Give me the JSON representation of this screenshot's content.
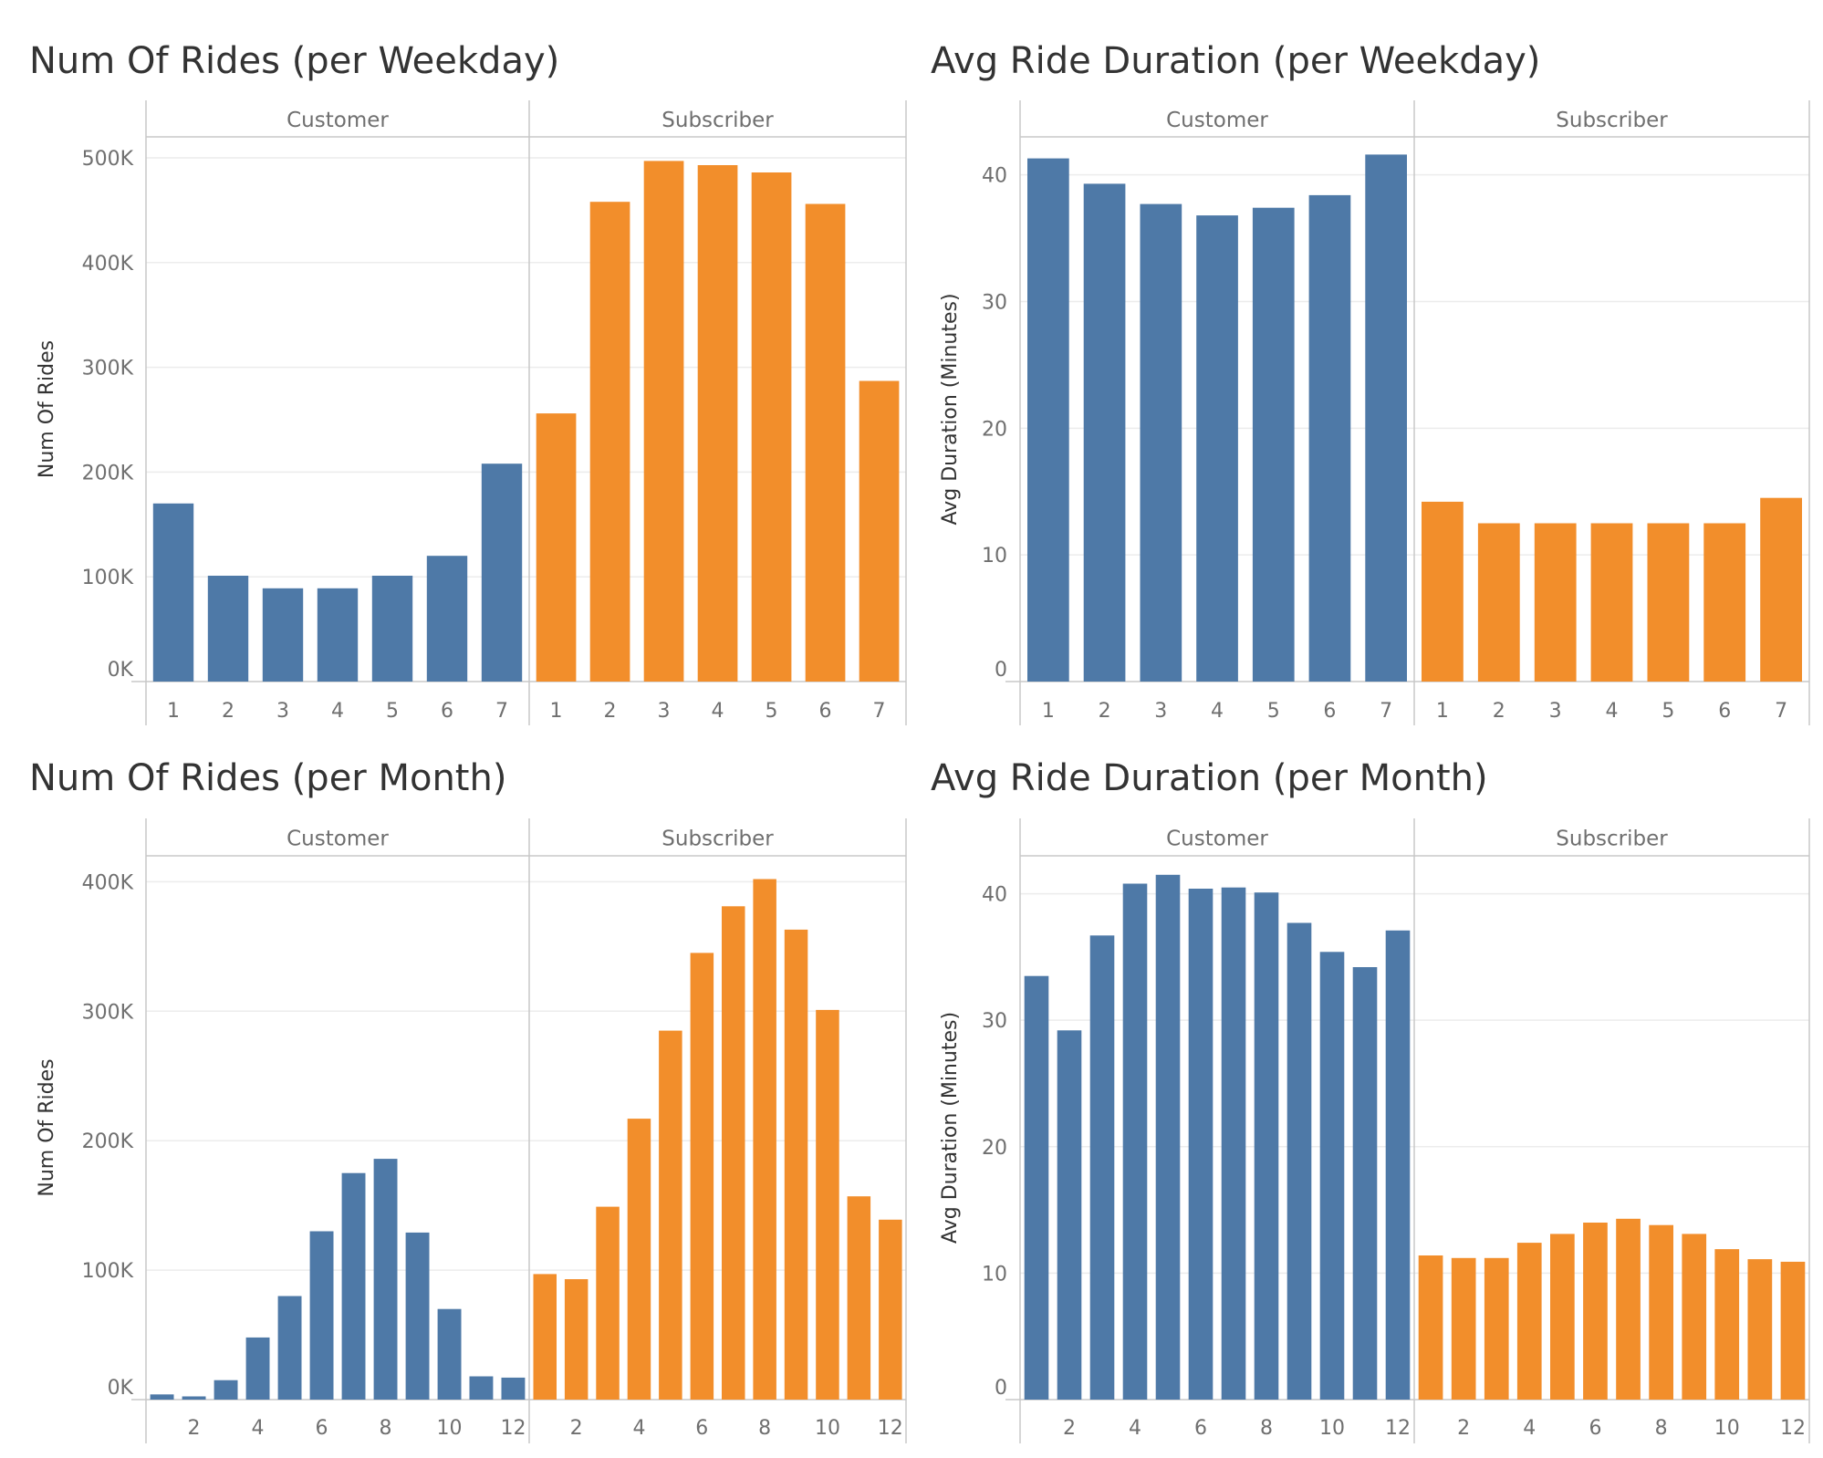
{
  "colors": {
    "customer": "#4e79a7",
    "subscriber": "#f28e2b",
    "grid": "#ececec",
    "axis": "#c8c8c8",
    "title": "#333333",
    "label": "#6f6f6f"
  },
  "chart_data": [
    {
      "id": "rides-weekday",
      "type": "bar",
      "title": "Num Of Rides (per Weekday)",
      "ylabel": "Num Of Rides",
      "ylim": [
        0,
        520000
      ],
      "ytick_values": [
        0,
        100000,
        200000,
        300000,
        400000,
        500000
      ],
      "ytick_labels": [
        "0K",
        "100K",
        "200K",
        "300K",
        "400K",
        "500K"
      ],
      "xtick_labels": [
        "1",
        "2",
        "3",
        "4",
        "5",
        "6",
        "7"
      ],
      "grid": true,
      "panels": [
        {
          "name": "Customer",
          "color_key": "customer",
          "categories": [
            1,
            2,
            3,
            4,
            5,
            6,
            7
          ],
          "values": [
            170000,
            101000,
            89000,
            89000,
            101000,
            120000,
            208000
          ]
        },
        {
          "name": "Subscriber",
          "color_key": "subscriber",
          "categories": [
            1,
            2,
            3,
            4,
            5,
            6,
            7
          ],
          "values": [
            256000,
            458000,
            497000,
            493000,
            486000,
            456000,
            287000
          ]
        }
      ]
    },
    {
      "id": "duration-weekday",
      "type": "bar",
      "title": "Avg Ride Duration (per Weekday)",
      "ylabel": "Avg Duration (Minutes)",
      "ylim": [
        0,
        43
      ],
      "ytick_values": [
        0,
        10,
        20,
        30,
        40
      ],
      "ytick_labels": [
        "0",
        "10",
        "20",
        "30",
        "40"
      ],
      "xtick_labels": [
        "1",
        "2",
        "3",
        "4",
        "5",
        "6",
        "7"
      ],
      "grid": true,
      "panels": [
        {
          "name": "Customer",
          "color_key": "customer",
          "categories": [
            1,
            2,
            3,
            4,
            5,
            6,
            7
          ],
          "values": [
            41.3,
            39.3,
            37.7,
            36.8,
            37.4,
            38.4,
            41.6
          ]
        },
        {
          "name": "Subscriber",
          "color_key": "subscriber",
          "categories": [
            1,
            2,
            3,
            4,
            5,
            6,
            7
          ],
          "values": [
            14.2,
            12.5,
            12.5,
            12.5,
            12.5,
            12.5,
            14.5
          ]
        }
      ]
    },
    {
      "id": "rides-month",
      "type": "bar",
      "title": "Num Of Rides (per Month)",
      "ylabel": "Num Of Rides",
      "ylim": [
        0,
        420000
      ],
      "ytick_values": [
        0,
        100000,
        200000,
        300000,
        400000
      ],
      "ytick_labels": [
        "0K",
        "100K",
        "200K",
        "300K",
        "400K"
      ],
      "xtick_labels": [
        "",
        "2",
        "",
        "4",
        "",
        "6",
        "",
        "8",
        "",
        "10",
        "",
        "12"
      ],
      "grid": true,
      "panels": [
        {
          "name": "Customer",
          "color_key": "customer",
          "categories": [
            1,
            2,
            3,
            4,
            5,
            6,
            7,
            8,
            9,
            10,
            11,
            12
          ],
          "values": [
            4000,
            2500,
            15000,
            48000,
            80000,
            130000,
            175000,
            186000,
            129000,
            70000,
            18000,
            17000
          ]
        },
        {
          "name": "Subscriber",
          "color_key": "subscriber",
          "categories": [
            1,
            2,
            3,
            4,
            5,
            6,
            7,
            8,
            9,
            10,
            11,
            12
          ],
          "values": [
            97000,
            93000,
            149000,
            217000,
            285000,
            345000,
            381000,
            402000,
            363000,
            301000,
            157000,
            139000
          ]
        }
      ]
    },
    {
      "id": "duration-month",
      "type": "bar",
      "title": "Avg Ride Duration (per Month)",
      "ylabel": "Avg Duration (Minutes)",
      "ylim": [
        0,
        43
      ],
      "ytick_values": [
        0,
        10,
        20,
        30,
        40
      ],
      "ytick_labels": [
        "0",
        "10",
        "20",
        "30",
        "40"
      ],
      "xtick_labels": [
        "",
        "2",
        "",
        "4",
        "",
        "6",
        "",
        "8",
        "",
        "10",
        "",
        "12"
      ],
      "grid": true,
      "panels": [
        {
          "name": "Customer",
          "color_key": "customer",
          "categories": [
            1,
            2,
            3,
            4,
            5,
            6,
            7,
            8,
            9,
            10,
            11,
            12
          ],
          "values": [
            33.5,
            29.2,
            36.7,
            40.8,
            41.5,
            40.4,
            40.5,
            40.1,
            37.7,
            35.4,
            34.2,
            37.1
          ]
        },
        {
          "name": "Subscriber",
          "color_key": "subscriber",
          "categories": [
            1,
            2,
            3,
            4,
            5,
            6,
            7,
            8,
            9,
            10,
            11,
            12
          ],
          "values": [
            11.4,
            11.2,
            11.2,
            12.4,
            13.1,
            14.0,
            14.3,
            13.8,
            13.1,
            11.9,
            11.1,
            10.9
          ]
        }
      ]
    }
  ]
}
